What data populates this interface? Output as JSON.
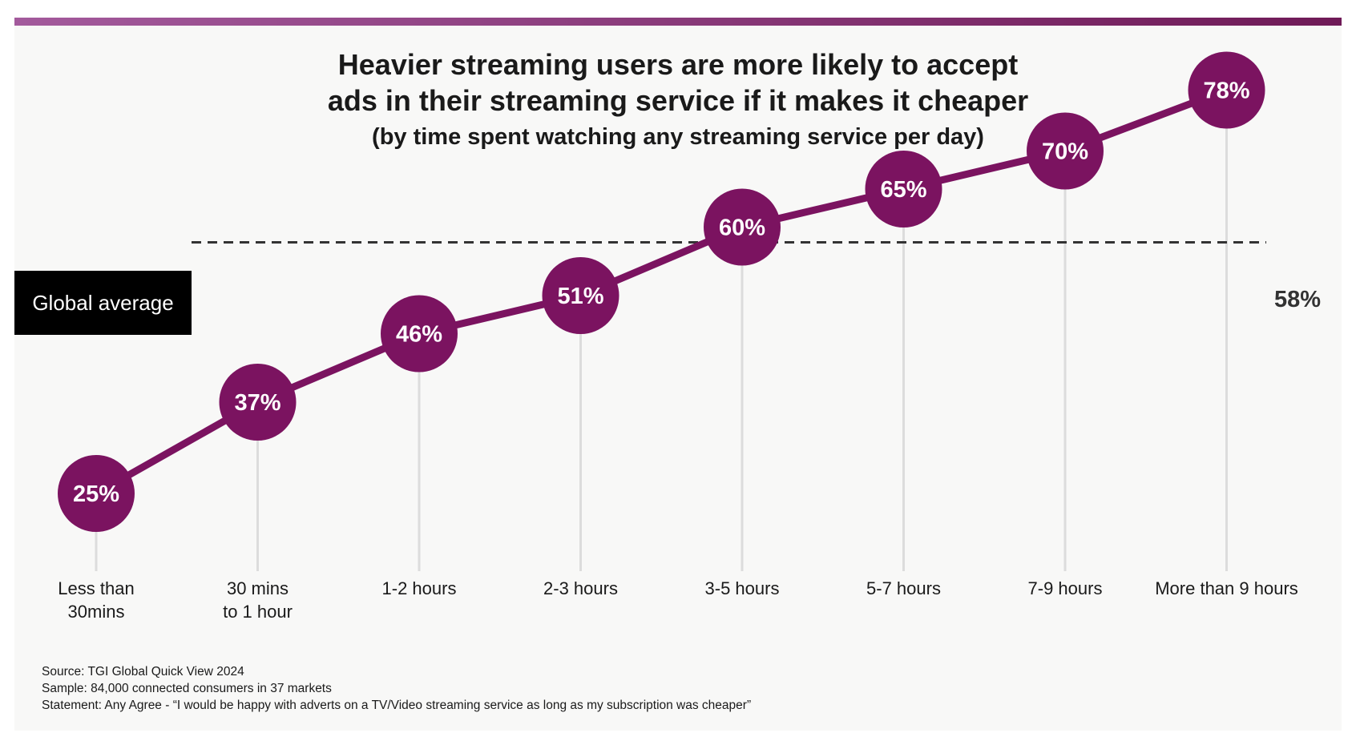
{
  "chart_data": {
    "type": "line",
    "title": [
      "Heavier streaming users are more likely to accept",
      "ads in their streaming service if it makes it cheaper"
    ],
    "subtitle": "(by time spent watching any streaming service per day)",
    "categories": [
      "Less than\n30mins",
      "30 mins\nto 1 hour",
      "1-2 hours",
      "2-3 hours",
      "3-5 hours",
      "5-7 hours",
      "7-9 hours",
      "More than 9 hours"
    ],
    "series": [
      {
        "values": [
          25,
          37,
          46,
          51,
          60,
          65,
          70,
          78
        ]
      }
    ],
    "value_labels": [
      "25%",
      "37%",
      "46%",
      "51%",
      "60%",
      "65%",
      "70%",
      "78%"
    ],
    "reference_line": {
      "label": "Global average",
      "value": 58,
      "value_label": "58%"
    },
    "unit": "%",
    "grid": false,
    "legend": "none",
    "colors": {
      "line": "#7b1360",
      "marker": "#7b1360",
      "marker_text": "#ffffff",
      "reference": "#333333",
      "top_bar": "#7b1a60"
    }
  },
  "footnotes": [
    "Source: TGI Global Quick View 2024",
    "Sample: 84,000 connected consumers in 37 markets",
    "Statement: Any Agree - “I would be happy with adverts on a TV/Video streaming service as long as my subscription was cheaper”"
  ]
}
